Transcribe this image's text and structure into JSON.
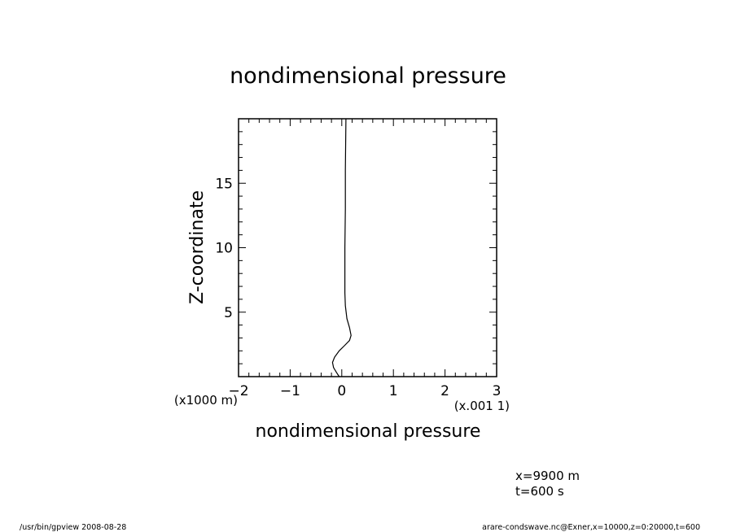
{
  "chart_data": {
    "type": "line",
    "title": "nondimensional pressure",
    "xlabel": "nondimensional pressure",
    "ylabel": "Z-coordinate",
    "x_scale_label": "(x.001 1)",
    "y_scale_label": "(x1000 m)",
    "xlim": [
      -2,
      3
    ],
    "ylim": [
      0,
      20
    ],
    "x_ticks": [
      -2,
      -1,
      0,
      1,
      2,
      3
    ],
    "x_tick_labels": [
      "-2",
      "-1",
      "0",
      "1",
      "2",
      "3"
    ],
    "y_ticks": [
      5,
      10,
      15
    ],
    "y_tick_labels": [
      "5",
      "10",
      "15"
    ],
    "grid": false,
    "series": [
      {
        "x": [
          -0.05,
          -0.1,
          -0.16,
          -0.18,
          -0.14,
          -0.05,
          0.05,
          0.15,
          0.18,
          0.15,
          0.1,
          0.07,
          0.06,
          0.06,
          0.06,
          0.07,
          0.07,
          0.08
        ],
        "y": [
          0.0,
          0.3,
          0.7,
          1.1,
          1.5,
          2.0,
          2.4,
          2.8,
          3.2,
          3.8,
          4.5,
          5.5,
          6.5,
          8.0,
          10.0,
          13.0,
          16.0,
          20.0
        ]
      }
    ]
  },
  "annotations": {
    "position": "x=9900  m",
    "time": "t=600  s"
  },
  "footer": {
    "left": "/usr/bin/gpview   2008-08-28",
    "right": "arare-condswave.nc@Exner,x=10000,z=0:20000,t=600"
  }
}
